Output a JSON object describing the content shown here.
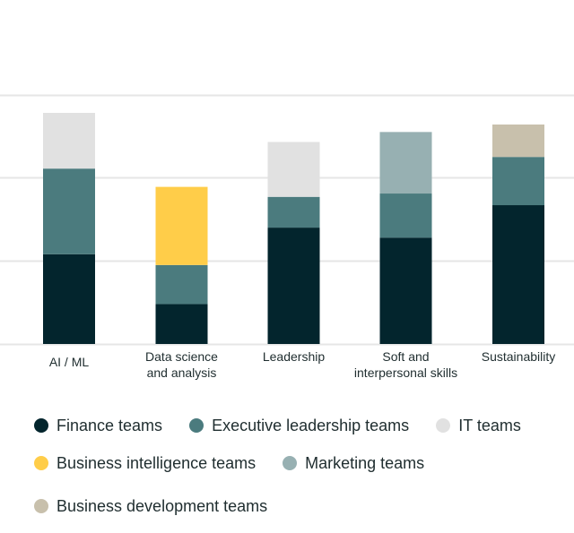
{
  "chart_data": {
    "type": "bar",
    "stacked": true,
    "categories": [
      "AI / ML",
      "Data science and analysis",
      "Leadership",
      "Soft and interpersonal skills",
      "Sustainability"
    ],
    "category_lines": [
      [
        "AI / ML"
      ],
      [
        "Data science",
        "and analysis"
      ],
      [
        "Leadership"
      ],
      [
        "Soft and",
        "interpersonal skills"
      ],
      [
        "Sustainability"
      ]
    ],
    "ylim": [
      0,
      37.5
    ],
    "gridlines": [
      0,
      10,
      20,
      30
    ],
    "grid": true,
    "y_tick_labels_shown": false,
    "legend_position": "bottom",
    "series": [
      {
        "name": "Finance teams",
        "color": "#03252d",
        "values": [
          10.8,
          4.8,
          14,
          12.8,
          16.7
        ]
      },
      {
        "name": "Executive leadership teams",
        "color": "#4b7b7e",
        "values": [
          10.3,
          4.7,
          3.7,
          5.3,
          5.8
        ]
      },
      {
        "name": "IT teams",
        "color": "#e1e1e1",
        "values": [
          6.7,
          0,
          6.6,
          0,
          0
        ]
      },
      {
        "name": "Business intelligence teams",
        "color": "#ffcd49",
        "values": [
          0,
          9.4,
          0,
          0,
          0
        ]
      },
      {
        "name": "Marketing teams",
        "color": "#97b0b2",
        "values": [
          0,
          0,
          0,
          7.4,
          0
        ]
      },
      {
        "name": "Business development teams",
        "color": "#c8c0ac",
        "values": [
          0,
          0,
          0,
          0,
          3.9
        ]
      }
    ]
  },
  "legend_rows": [
    [
      0,
      1,
      2
    ],
    [
      3,
      4
    ],
    [
      5
    ]
  ]
}
